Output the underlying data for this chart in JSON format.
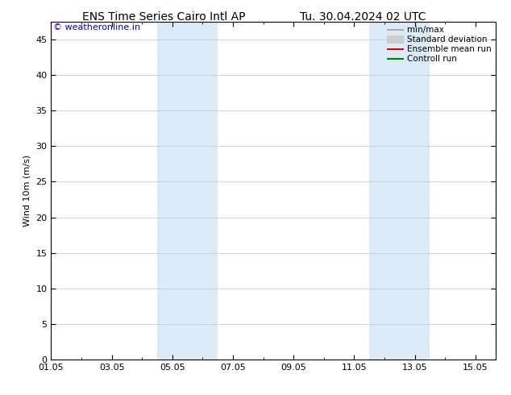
{
  "title_left": "ENS Time Series Cairo Intl AP",
  "title_right": "Tu. 30.04.2024 02 UTC",
  "ylabel": "Wind 10m (m/s)",
  "watermark": "© weatheronline.in",
  "watermark_color": "#0000cc",
  "background_color": "#ffffff",
  "plot_bg_color": "#ffffff",
  "grid_color": "#cccccc",
  "shade_color": "#daeaf7",
  "ylim": [
    0,
    47.5
  ],
  "yticks": [
    0,
    5,
    10,
    15,
    20,
    25,
    30,
    35,
    40,
    45
  ],
  "xlim": [
    0,
    14.67
  ],
  "xtick_labels": [
    "01.05",
    "03.05",
    "05.05",
    "07.05",
    "09.05",
    "11.05",
    "13.05",
    "15.05"
  ],
  "xtick_positions_days": [
    0,
    2,
    4,
    6,
    8,
    10,
    12,
    14
  ],
  "shade_bands": [
    {
      "start_day": 3.5,
      "end_day": 5.5
    },
    {
      "start_day": 10.5,
      "end_day": 12.5
    }
  ],
  "legend_items": [
    {
      "label": "min/max",
      "color": "#aaaaaa",
      "lw": 1.5,
      "style": "-",
      "type": "line"
    },
    {
      "label": "Standard deviation",
      "color": "#cccccc",
      "lw": 7,
      "style": "-",
      "type": "line"
    },
    {
      "label": "Ensemble mean run",
      "color": "#dd0000",
      "lw": 1.5,
      "style": "-",
      "type": "line"
    },
    {
      "label": "Controll run",
      "color": "#007700",
      "lw": 1.5,
      "style": "-",
      "type": "line"
    }
  ],
  "title_fontsize": 10,
  "axis_fontsize": 8,
  "tick_fontsize": 8,
  "legend_fontsize": 7.5,
  "watermark_fontsize": 8
}
